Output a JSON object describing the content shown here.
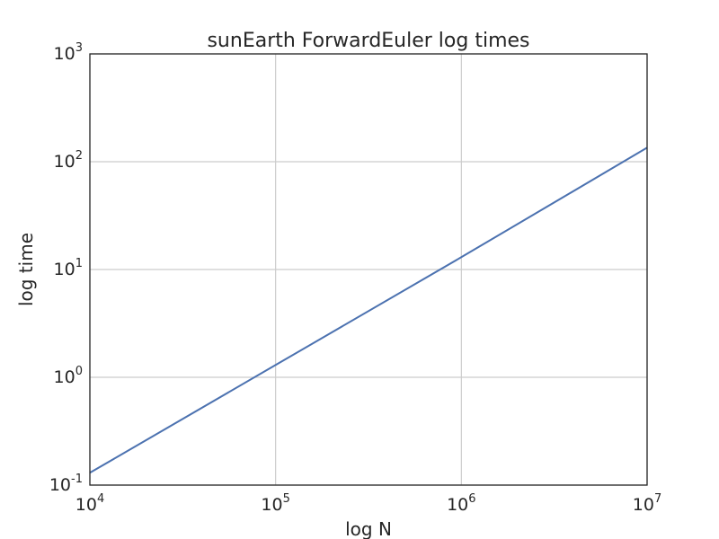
{
  "chart_data": {
    "type": "line",
    "title": "sunEarth ForwardEuler log times",
    "xlabel": "log N",
    "ylabel": "log time",
    "xscale": "log",
    "yscale": "log",
    "xlim": [
      10000,
      10000000
    ],
    "ylim": [
      0.1,
      1000
    ],
    "grid": true,
    "x_ticks": [
      {
        "base": "10",
        "exp": "4",
        "value": 10000
      },
      {
        "base": "10",
        "exp": "5",
        "value": 100000
      },
      {
        "base": "10",
        "exp": "6",
        "value": 1000000
      },
      {
        "base": "10",
        "exp": "7",
        "value": 10000000
      }
    ],
    "y_ticks": [
      {
        "base": "10",
        "exp": "-1",
        "value": 0.1
      },
      {
        "base": "10",
        "exp": "0",
        "value": 1
      },
      {
        "base": "10",
        "exp": "1",
        "value": 10
      },
      {
        "base": "10",
        "exp": "2",
        "value": 100
      },
      {
        "base": "10",
        "exp": "3",
        "value": 1000
      }
    ],
    "series": [
      {
        "color": "#4c72b0",
        "x": [
          10000,
          100000,
          1000000,
          10000000
        ],
        "y": [
          0.13,
          1.3,
          13,
          135
        ]
      }
    ]
  }
}
